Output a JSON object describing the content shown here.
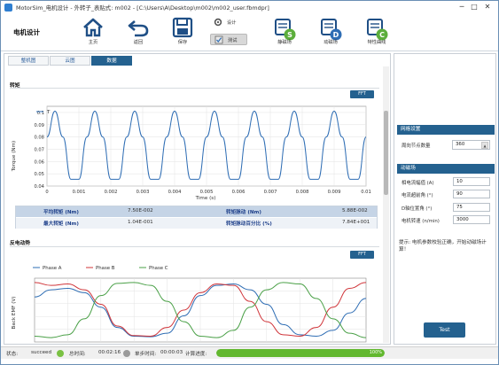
{
  "window": {
    "title": "MotorSim_电机设计 - 外转子_表贴式:  m002 - [C:\\Users\\A\\Desktop\\m002\\m002_user.fbmdpr]",
    "controls": {
      "minimize": "─",
      "maximize": "□",
      "close": "✕"
    }
  },
  "ribbon": {
    "brand": "电机设计",
    "buttons": {
      "home": "主页",
      "back": "返回",
      "save": "保存"
    },
    "mode": {
      "design": "设计",
      "test": "测试"
    },
    "fields": {
      "static": "静磁场",
      "dynamic": "动磁场",
      "curve": "特性曲线"
    },
    "field_letters": {
      "static": "S",
      "dynamic": "D",
      "curve": "C"
    }
  },
  "tabs": [
    "整机图",
    "云图",
    "数据"
  ],
  "active_tab": 2,
  "torque_section": {
    "title": "转矩",
    "fft": "FFT",
    "legend": "T",
    "ylabel": "Torque (Nm)",
    "xlabel": "Time (s)"
  },
  "perf_table": {
    "rows": [
      [
        {
          "k": "平均转矩 (Nm)",
          "v": "7.50E-002"
        },
        {
          "k": "转矩脉动 (Nm)",
          "v": "5.88E-002"
        }
      ],
      [
        {
          "k": "最大转矩 (Nm)",
          "v": "1.04E-001"
        },
        {
          "k": "转矩脉动百分比 (%)",
          "v": "7.84E+001"
        }
      ]
    ]
  },
  "emf_section": {
    "title": "反电动势",
    "fft": "FFT",
    "ylabel": "Back EMF (V)"
  },
  "chart_data": [
    {
      "type": "line",
      "xlabel": "Time (s)",
      "ylabel": "Torque (Nm)",
      "x_ticks": [
        "0",
        "0.001",
        "0.002",
        "0.003",
        "0.004",
        "0.005",
        "0.006",
        "0.007",
        "0.008",
        "0.009",
        "0.01"
      ],
      "xlim": [
        0,
        0.01
      ],
      "y_ticks": [
        "0.1",
        "0.09",
        "0.08",
        "0.07",
        "0.06",
        "0.05",
        "0.04"
      ],
      "ylim": [
        0.04,
        0.105
      ],
      "grid": true,
      "legend": "top-left",
      "series": [
        {
          "name": "T",
          "color": "#2e6db4",
          "x": [
            0,
            0.00025,
            0.0005,
            0.00075,
            0.001,
            0.00125,
            0.0015,
            0.00175,
            0.002,
            0.00225,
            0.0025,
            0.00275,
            0.003,
            0.00325,
            0.0035,
            0.00375,
            0.004,
            0.00425,
            0.0045,
            0.00475,
            0.005,
            0.00525,
            0.0055,
            0.00575,
            0.006,
            0.00625,
            0.0065,
            0.00675,
            0.007,
            0.00725,
            0.0075,
            0.00775,
            0.008,
            0.00825,
            0.0085,
            0.00875,
            0.009,
            0.00925,
            0.0095,
            0.00975,
            0.01
          ],
          "y": [
            0.08,
            0.101,
            0.08,
            0.0455,
            0.0455,
            0.08,
            0.101,
            0.08,
            0.0455,
            0.0455,
            0.08,
            0.101,
            0.08,
            0.0455,
            0.0455,
            0.08,
            0.101,
            0.08,
            0.0455,
            0.0455,
            0.08,
            0.101,
            0.08,
            0.0455,
            0.0455,
            0.08,
            0.101,
            0.08,
            0.0455,
            0.0455,
            0.08,
            0.101,
            0.08,
            0.0455,
            0.0455,
            0.08,
            0.101,
            0.08,
            0.0455,
            0.0455,
            0.08
          ]
        }
      ]
    },
    {
      "type": "line",
      "ylabel": "Back EMF (V)",
      "xlim": [
        0,
        1
      ],
      "ylim": [
        -1.1,
        1.1
      ],
      "grid": true,
      "legend": "top",
      "series": [
        {
          "name": "Phase A",
          "color": "#2e6db4",
          "x": [
            0,
            0.05,
            0.1,
            0.15,
            0.2,
            0.25,
            0.3,
            0.35,
            0.4,
            0.45,
            0.5,
            0.55,
            0.6,
            0.65,
            0.7,
            0.75,
            0.8,
            0.85,
            0.9,
            0.95,
            1.0
          ],
          "y": [
            0.45,
            0.7,
            0.75,
            0.6,
            0.1,
            -0.6,
            -0.9,
            -0.92,
            -0.8,
            -0.2,
            0.5,
            0.85,
            0.9,
            0.7,
            0.2,
            -0.5,
            -0.85,
            -0.9,
            -0.7,
            -0.1,
            0.4
          ]
        },
        {
          "name": "Phase B",
          "color": "#d0353a",
          "x": [
            0,
            0.05,
            0.1,
            0.15,
            0.2,
            0.25,
            0.3,
            0.35,
            0.4,
            0.45,
            0.5,
            0.55,
            0.6,
            0.65,
            0.7,
            0.75,
            0.8,
            0.85,
            0.9,
            0.95,
            1.0
          ],
          "y": [
            0.95,
            0.85,
            0.9,
            0.7,
            0.2,
            -0.55,
            -0.88,
            -0.9,
            -0.6,
            0.0,
            0.6,
            0.9,
            0.85,
            0.3,
            -0.4,
            -0.85,
            -0.9,
            -0.6,
            0.1,
            0.75,
            0.95
          ]
        },
        {
          "name": "Phase C",
          "color": "#4aa047",
          "x": [
            0,
            0.05,
            0.1,
            0.15,
            0.2,
            0.25,
            0.3,
            0.35,
            0.4,
            0.45,
            0.5,
            0.55,
            0.6,
            0.65,
            0.7,
            0.75,
            0.8,
            0.85,
            0.9,
            0.95,
            1.0
          ],
          "y": [
            -0.9,
            -0.95,
            -0.85,
            -0.3,
            0.5,
            0.92,
            0.95,
            0.85,
            0.3,
            -0.4,
            -0.9,
            -0.95,
            -0.7,
            0.1,
            0.7,
            0.95,
            0.9,
            0.4,
            -0.3,
            -0.8,
            -0.95
          ]
        }
      ]
    }
  ],
  "mesh_group": {
    "title": "网格设置",
    "label": "周向节点数量",
    "value": "360",
    "spin_arrow": "▲"
  },
  "dyn_group": {
    "title": "动磁场",
    "fields": [
      {
        "label": "相电流幅值 (A)",
        "value": "10"
      },
      {
        "label": "电流超前角 (°)",
        "value": "90"
      },
      {
        "label": "D轴位置角 (°)",
        "value": "75"
      },
      {
        "label": "电机转速 (n/min)",
        "value": "3000"
      }
    ]
  },
  "hint": "提示: 电机参数校验正确，开始动磁场计算！",
  "test_button": "Test",
  "status": {
    "state_label": "状态:",
    "state_value": "succeed",
    "total_label": "总时间:",
    "total_value": "00:02:16",
    "step_label": "单步时间:",
    "step_value": "00:00:03",
    "progress_label": "计算进度:",
    "progress_value": "100%",
    "progress_fraction": 1.0
  },
  "colors": {
    "accent": "#24618f",
    "success": "#62b82f"
  }
}
